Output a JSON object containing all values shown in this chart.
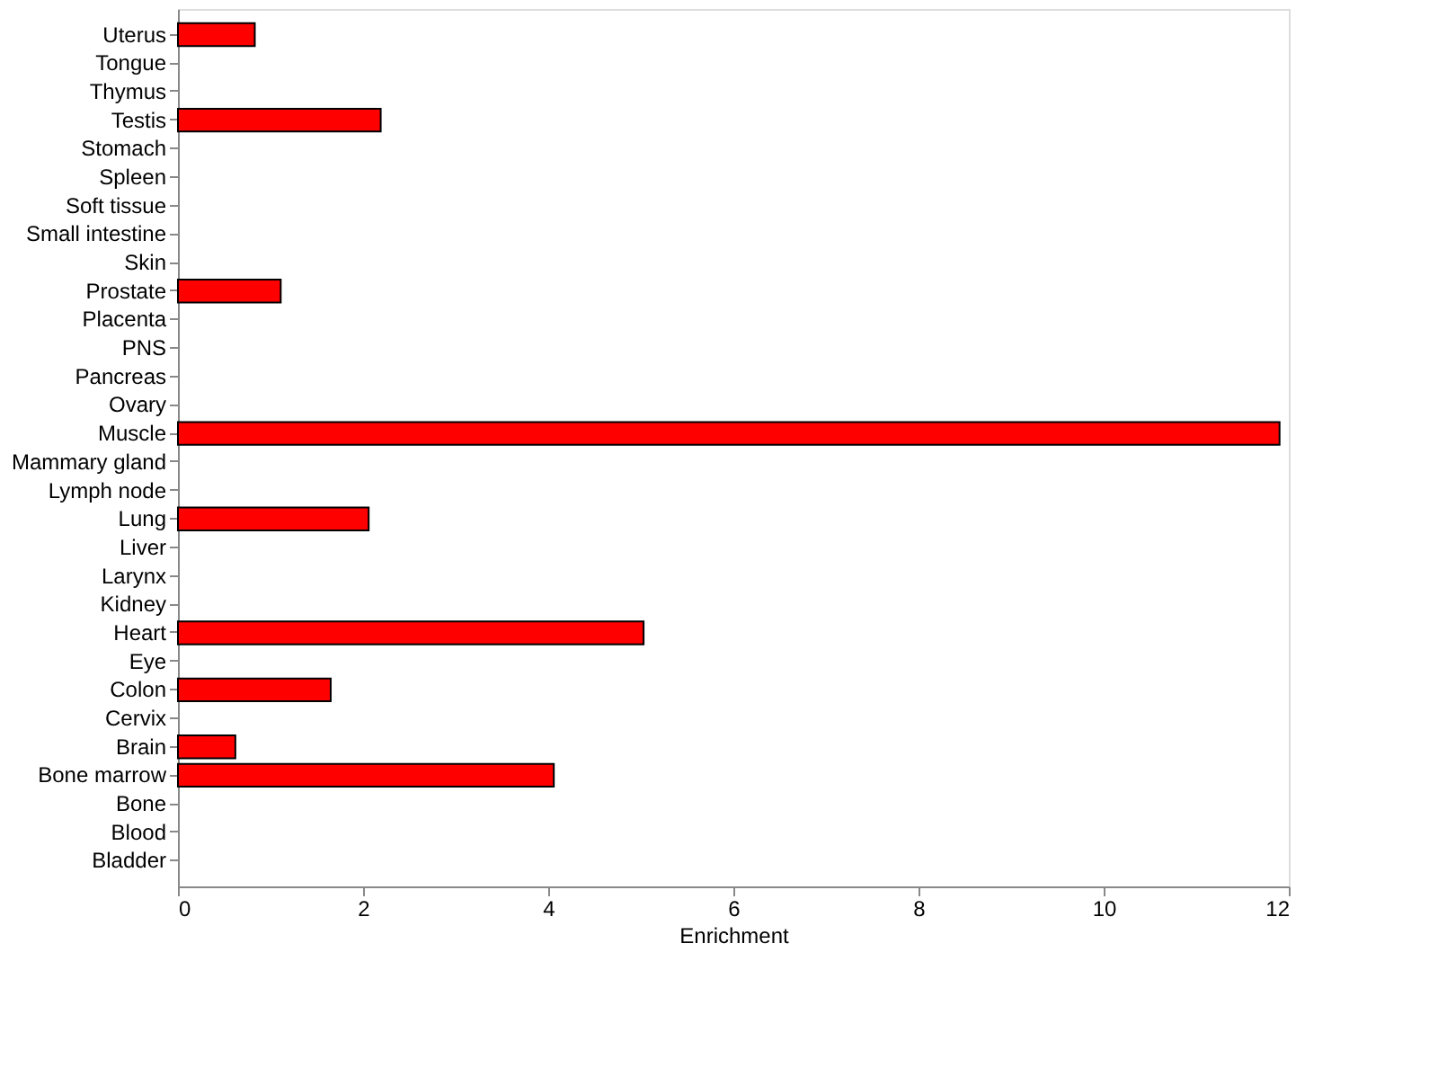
{
  "chart_data": {
    "type": "bar",
    "orientation": "horizontal",
    "xlabel": "Enrichment",
    "categories": [
      "Uterus",
      "Tongue",
      "Thymus",
      "Testis",
      "Stomach",
      "Spleen",
      "Soft tissue",
      "Small intestine",
      "Skin",
      "Prostate",
      "Placenta",
      "PNS",
      "Pancreas",
      "Ovary",
      "Muscle",
      "Mammary gland",
      "Lymph node",
      "Lung",
      "Liver",
      "Larynx",
      "Kidney",
      "Heart",
      "Eye",
      "Colon",
      "Cervix",
      "Brain",
      "Bone marrow",
      "Bone",
      "Blood",
      "Bladder"
    ],
    "values": [
      0.83,
      0,
      0,
      2.19,
      0,
      0,
      0,
      0,
      0,
      1.11,
      0,
      0,
      0,
      0,
      11.9,
      0,
      0,
      2.06,
      0,
      0,
      0,
      5.03,
      0,
      1.65,
      0,
      0.62,
      4.06,
      0,
      0,
      0
    ],
    "color": "#ff0000",
    "xlim": [
      0,
      12
    ],
    "xticks": [
      0,
      2,
      4,
      6,
      8,
      10,
      12
    ],
    "grid": false
  }
}
